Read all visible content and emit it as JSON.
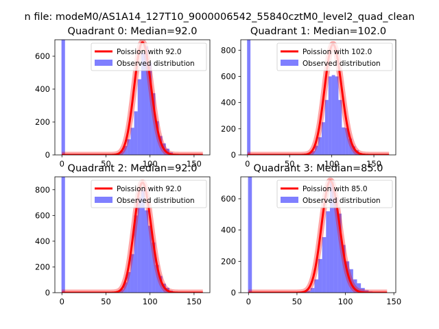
{
  "figure": {
    "suptitle": "n file: modeM0/AS1A14_127T10_9000006542_55840cztM0_level2_quad_clean"
  },
  "chart_data": [
    {
      "type": "bar",
      "title": "Quadrant 0: Median=92.0",
      "xlim": [
        -8,
        168
      ],
      "ylim": [
        0,
        700
      ],
      "xticks": [
        "0",
        "50",
        "100",
        "150"
      ],
      "xtick_values": [
        0,
        50,
        100,
        150
      ],
      "yticks": [
        "0",
        "200",
        "400",
        "600"
      ],
      "ytick_values": [
        0,
        200,
        400,
        600
      ],
      "legend": {
        "poisson_label": "Poission with 92.0",
        "observed_label": "Observed distribution",
        "position": "upper-right"
      },
      "zero_bin": 700,
      "observed": {
        "centers": [
          56,
          60,
          64,
          68,
          72,
          76,
          80,
          84,
          88,
          92,
          96,
          100,
          104,
          108,
          112,
          116,
          120,
          124,
          128
        ],
        "values": [
          3,
          5,
          10,
          25,
          55,
          95,
          165,
          265,
          460,
          620,
          660,
          560,
          375,
          205,
          115,
          70,
          38,
          15,
          4
        ]
      },
      "poisson": {
        "mean": 92.0,
        "scale": 684,
        "x_range": [
          0,
          160
        ]
      }
    },
    {
      "type": "bar",
      "title": "Quadrant 1: Median=102.0",
      "xlim": [
        -8,
        176
      ],
      "ylim": [
        0,
        880
      ],
      "xticks": [
        "0",
        "50",
        "100",
        "150"
      ],
      "xtick_values": [
        0,
        50,
        100,
        150
      ],
      "yticks": [
        "0",
        "200",
        "400",
        "600",
        "800"
      ],
      "ytick_values": [
        0,
        200,
        400,
        600,
        800
      ],
      "legend": {
        "poisson_label": "Poission with 102.0",
        "observed_label": "Observed distribution",
        "position": "upper-right"
      },
      "zero_bin": 880,
      "observed": {
        "centers": [
          66,
          70,
          74,
          78,
          82,
          86,
          90,
          94,
          98,
          102,
          106,
          110,
          114,
          118,
          122,
          126,
          130,
          134,
          138
        ],
        "values": [
          3,
          6,
          12,
          30,
          70,
          135,
          250,
          420,
          600,
          610,
          600,
          420,
          210,
          205,
          125,
          65,
          35,
          14,
          4
        ]
      },
      "poisson": {
        "mean": 102.0,
        "scale": 845,
        "x_range": [
          0,
          168
        ]
      }
    },
    {
      "type": "bar",
      "title": "Quadrant 2: Median=92.0",
      "xlim": [
        -8,
        168
      ],
      "ylim": [
        0,
        900
      ],
      "xticks": [
        "0",
        "50",
        "100",
        "150"
      ],
      "xtick_values": [
        0,
        50,
        100,
        150
      ],
      "yticks": [
        "0",
        "200",
        "400",
        "600",
        "800"
      ],
      "ytick_values": [
        0,
        200,
        400,
        600,
        800
      ],
      "legend": {
        "poisson_label": "Poission with 92.0",
        "observed_label": "Observed distribution",
        "position": "upper-right"
      },
      "zero_bin": 900,
      "observed": {
        "centers": [
          56,
          60,
          64,
          68,
          72,
          76,
          80,
          84,
          88,
          92,
          96,
          100,
          104,
          108,
          112,
          116,
          120,
          124,
          128
        ],
        "values": [
          3,
          5,
          12,
          28,
          80,
          160,
          300,
          600,
          740,
          800,
          640,
          520,
          390,
          215,
          130,
          70,
          38,
          15,
          4
        ]
      },
      "poisson": {
        "mean": 92.0,
        "scale": 855,
        "x_range": [
          0,
          160
        ]
      }
    },
    {
      "type": "bar",
      "title": "Quadrant 3: Median=85.0",
      "xlim": [
        -8,
        152
      ],
      "ylim": [
        0,
        740
      ],
      "xticks": [
        "0",
        "50",
        "100",
        "150"
      ],
      "xtick_values": [
        0,
        50,
        100,
        150
      ],
      "yticks": [
        "0",
        "200",
        "400",
        "600"
      ],
      "ytick_values": [
        0,
        200,
        400,
        600
      ],
      "legend": {
        "poisson_label": "Poission with 85.0",
        "observed_label": "Observed distribution",
        "position": "upper-right"
      },
      "zero_bin": 740,
      "observed": {
        "centers": [
          50,
          54,
          58,
          62,
          66,
          70,
          74,
          78,
          82,
          86,
          90,
          94,
          98,
          102,
          106,
          110,
          114,
          118,
          122,
          126,
          130,
          134
        ],
        "values": [
          3,
          5,
          8,
          12,
          30,
          85,
          215,
          355,
          520,
          710,
          605,
          505,
          305,
          200,
          150,
          85,
          60,
          30,
          15,
          8,
          5,
          3
        ]
      },
      "poisson": {
        "mean": 85.0,
        "scale": 715,
        "x_range": [
          0,
          143
        ]
      }
    }
  ]
}
